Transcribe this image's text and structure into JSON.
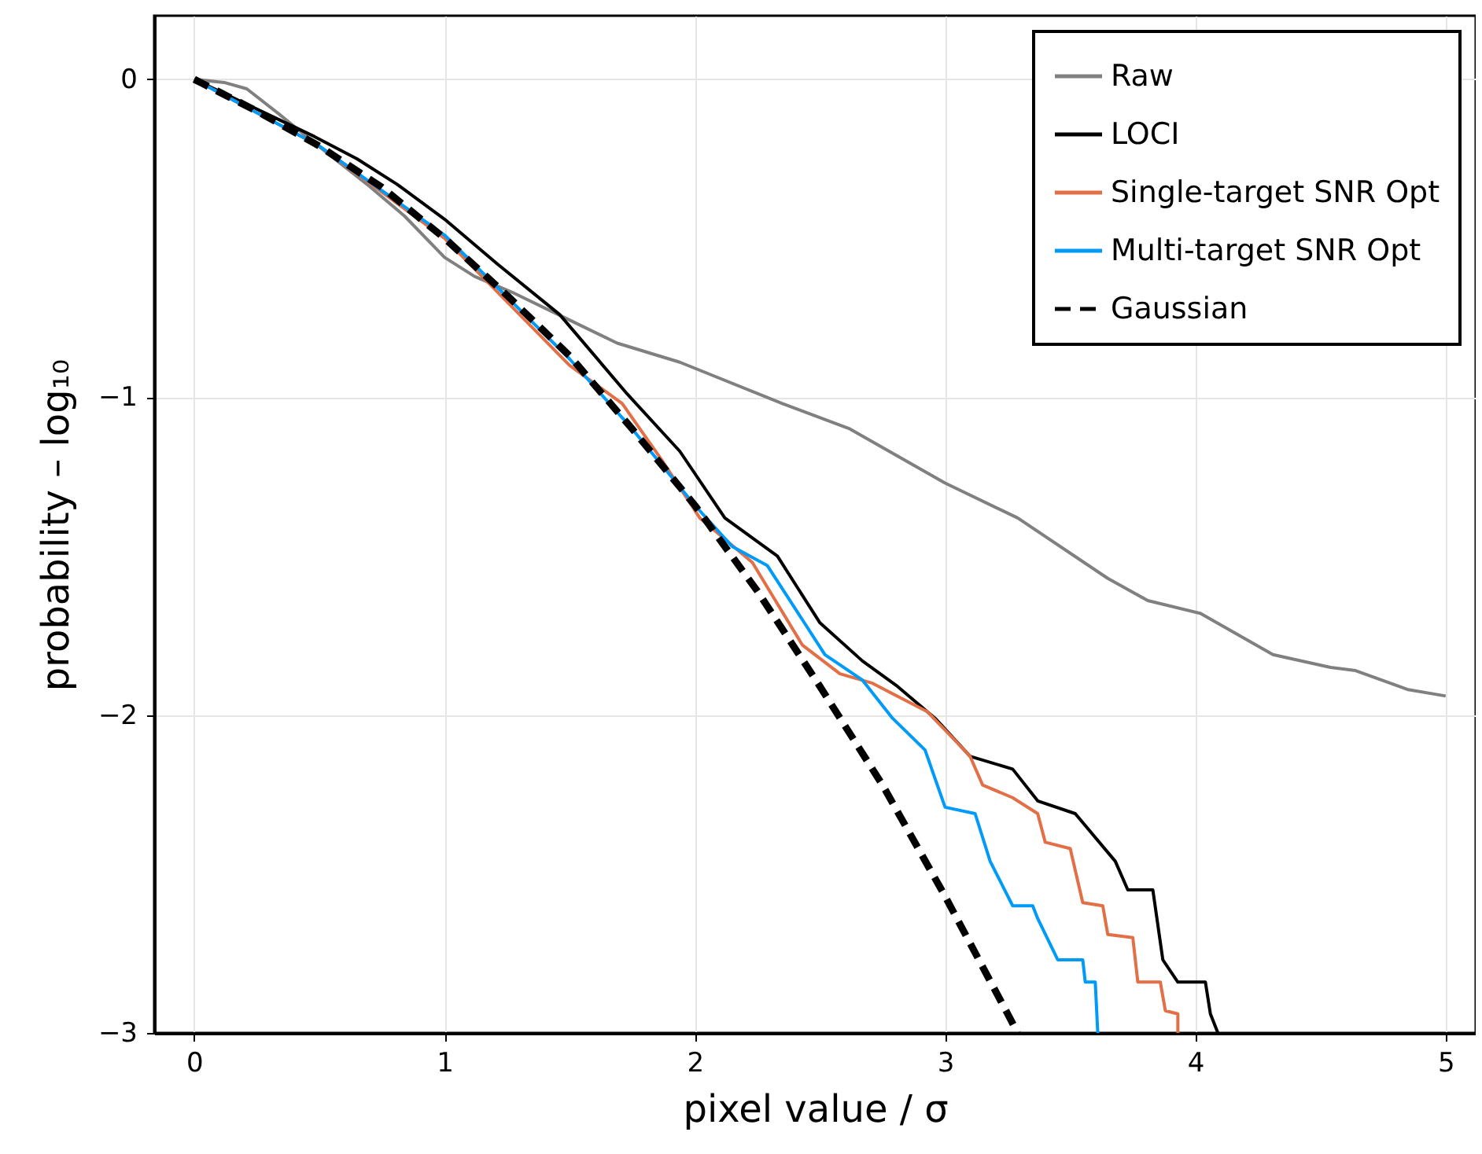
{
  "chart_data": {
    "type": "line",
    "xlabel": "pixel value / σ",
    "ylabel": "probability – log₁₀",
    "xlim": [
      -0.16,
      5.12
    ],
    "ylim": [
      -3,
      0.2
    ],
    "xticks": [
      0,
      1,
      2,
      3,
      4,
      5
    ],
    "yticks": [
      {
        "value": 0,
        "label": "0"
      },
      {
        "value": -1,
        "label": "−1"
      },
      {
        "value": -2,
        "label": "−2"
      },
      {
        "value": -3,
        "label": "−3"
      }
    ],
    "grid": true,
    "legend": "top right",
    "series": [
      {
        "name": "Raw",
        "color": "#808080",
        "line_style": "solid",
        "x": [
          0,
          0.12,
          0.21,
          0.34,
          0.48,
          0.69,
          0.84,
          1.0,
          1.12,
          1.27,
          1.48,
          1.69,
          1.94,
          2.35,
          2.62,
          3.0,
          3.29,
          3.65,
          3.81,
          4.02,
          4.31,
          4.54,
          4.64,
          4.85,
          5.0
        ],
        "values": [
          0,
          -0.01,
          -0.03,
          -0.11,
          -0.2,
          -0.33,
          -0.43,
          -0.56,
          -0.62,
          -0.67,
          -0.75,
          -0.83,
          -0.89,
          -1.02,
          -1.1,
          -1.27,
          -1.38,
          -1.57,
          -1.64,
          -1.68,
          -1.81,
          -1.85,
          -1.86,
          -1.92,
          -1.94
        ]
      },
      {
        "name": "LOCI",
        "color": "#000000",
        "line_style": "solid",
        "x": [
          0,
          0.48,
          0.65,
          0.81,
          1.0,
          1.21,
          1.46,
          1.73,
          1.94,
          2.12,
          2.33,
          2.5,
          2.67,
          2.81,
          2.96,
          3.1,
          3.27,
          3.37,
          3.52,
          3.68,
          3.73,
          3.83,
          3.87,
          3.93,
          4.04,
          4.06,
          4.09
        ],
        "values": [
          0,
          -0.18,
          -0.25,
          -0.33,
          -0.44,
          -0.58,
          -0.74,
          -0.99,
          -1.17,
          -1.38,
          -1.5,
          -1.71,
          -1.83,
          -1.91,
          -2.01,
          -2.13,
          -2.17,
          -2.27,
          -2.31,
          -2.46,
          -2.55,
          -2.55,
          -2.77,
          -2.84,
          -2.84,
          -2.94,
          -3.0
        ]
      },
      {
        "name": "Single-target SNR Opt",
        "color": "#e26f46",
        "line_style": "solid",
        "x": [
          0,
          0.5,
          1.0,
          1.5,
          1.71,
          1.87,
          2.02,
          2.23,
          2.43,
          2.58,
          2.71,
          2.93,
          3.04,
          3.1,
          3.15,
          3.27,
          3.37,
          3.4,
          3.5,
          3.55,
          3.63,
          3.65,
          3.75,
          3.77,
          3.86,
          3.88,
          3.93,
          3.93
        ],
        "values": [
          0,
          -0.21,
          -0.5,
          -0.9,
          -1.02,
          -1.2,
          -1.38,
          -1.52,
          -1.78,
          -1.87,
          -1.9,
          -1.99,
          -2.08,
          -2.13,
          -2.22,
          -2.26,
          -2.31,
          -2.4,
          -2.42,
          -2.59,
          -2.6,
          -2.69,
          -2.7,
          -2.84,
          -2.84,
          -2.93,
          -2.94,
          -3.0
        ]
      },
      {
        "name": "Multi-target SNR Opt",
        "color": "#009af9",
        "line_style": "solid",
        "x": [
          0,
          0.5,
          1.0,
          1.5,
          1.75,
          2.0,
          2.15,
          2.29,
          2.52,
          2.67,
          2.79,
          2.92,
          3.0,
          3.12,
          3.18,
          3.27,
          3.35,
          3.37,
          3.45,
          3.55,
          3.56,
          3.6,
          3.61
        ],
        "values": [
          0,
          -0.21,
          -0.49,
          -0.88,
          -1.1,
          -1.34,
          -1.47,
          -1.53,
          -1.81,
          -1.89,
          -2.01,
          -2.11,
          -2.29,
          -2.31,
          -2.46,
          -2.6,
          -2.6,
          -2.64,
          -2.77,
          -2.77,
          -2.84,
          -2.84,
          -3.0
        ]
      },
      {
        "name": "Gaussian",
        "color": "#000000",
        "line_style": "dashed",
        "x": [
          0,
          0.25,
          0.5,
          0.75,
          1.0,
          1.25,
          1.5,
          1.75,
          2.0,
          2.25,
          2.5,
          2.75,
          3.0,
          3.25,
          3.29
        ],
        "values": [
          0,
          -0.1,
          -0.21,
          -0.34,
          -0.5,
          -0.68,
          -0.87,
          -1.1,
          -1.34,
          -1.61,
          -1.91,
          -2.22,
          -2.57,
          -2.94,
          -3.0
        ]
      }
    ]
  }
}
